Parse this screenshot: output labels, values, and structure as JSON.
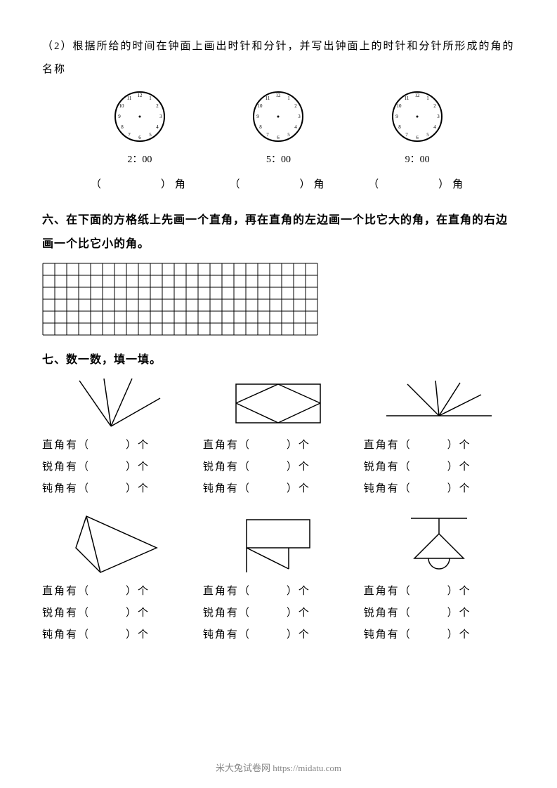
{
  "q2": {
    "instruction": "（2）根据所给的时间在钟面上画出时针和分针，并写出钟面上的时针和分针所形成的角的名称",
    "clocks": [
      {
        "time": "2：00"
      },
      {
        "time": "5：00"
      },
      {
        "time": "9：00"
      }
    ],
    "angle_label": "（　　　　）角"
  },
  "section6": {
    "title": "六、在下面的方格纸上先画一个直角，再在直角的左边画一个比它大的角，在直角的右边画一个比它小的角。",
    "grid": {
      "cols": 23,
      "rows": 6,
      "cell_size": 17,
      "stroke": "#000000",
      "stroke_width": 1
    }
  },
  "section7": {
    "title": "七、数一数，填一填。",
    "labels": {
      "right": "直角有（　　　）个",
      "acute": "锐角有（　　　）个",
      "obtuse": "钝角有（　　　）个"
    },
    "shapes_stroke": "#000000",
    "shapes_stroke_width": 1.5
  },
  "footer": "米大兔试卷网 https://midatu.com",
  "clock_style": {
    "radius": 35,
    "stroke": "#000000",
    "stroke_width": 2,
    "tick_color": "#000000",
    "font_size": 8
  }
}
